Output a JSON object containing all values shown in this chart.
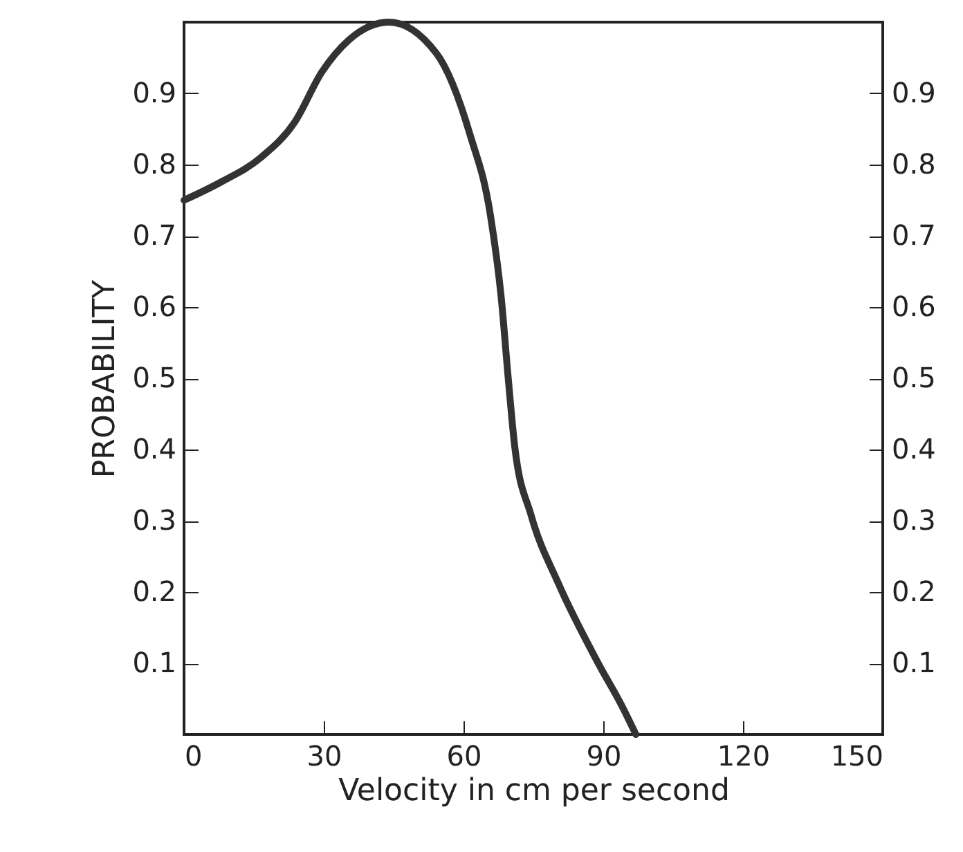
{
  "chart_data": {
    "type": "line",
    "xlabel": "Velocity in cm per second",
    "ylabel": "PROBABILITY",
    "x": [
      0,
      7.8,
      16.5,
      23.8,
      29.6,
      35.4,
      44,
      54.2,
      61.4,
      65.8,
      68.1,
      69.6,
      71,
      74.5,
      80.3,
      89,
      94,
      97
    ],
    "series": [
      {
        "color": "#333333",
        "values": [
          0.75,
          0.775,
          0.81,
          0.86,
          0.93,
          0.975,
          1.0,
          0.956,
          0.842,
          0.728,
          0.613,
          0.5,
          0.404,
          0.308,
          0.213,
          0.099,
          0.04,
          0
        ]
      }
    ],
    "xlim": [
      0,
      150
    ],
    "xticks": [
      0,
      30,
      60,
      90,
      120,
      150
    ],
    "ylim": [
      0,
      1
    ],
    "yticks": [
      0.1,
      0.2,
      0.3,
      0.4,
      0.5,
      0.6,
      0.7,
      0.8,
      0.9
    ],
    "y2lim": [
      0,
      1
    ],
    "y2ticks": [
      0.1,
      0.2,
      0.3,
      0.4,
      0.5,
      0.6,
      0.7,
      0.8,
      0.9
    ],
    "grid": false,
    "marker": "none",
    "line_style": "solid"
  }
}
